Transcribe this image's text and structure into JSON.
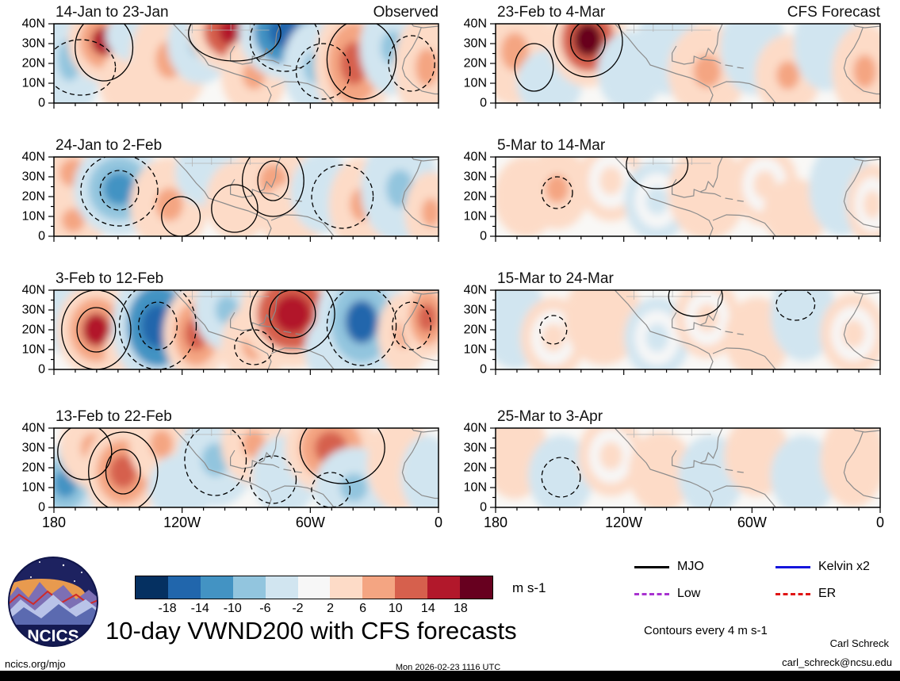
{
  "meta": {
    "site": "ncics.org/mjo",
    "timestamp": "Mon 2026-02-23 1116 UTC",
    "credit_name": "Carl Schreck",
    "credit_email": "carl_schreck@ncsu.edu",
    "contours_note": "Contours every 4 m s-1",
    "logo_text": "NCICS"
  },
  "chart_data": {
    "type": "heatmap",
    "title": "10-day VWND200 with CFS forecasts",
    "variable": "VWND200 anomaly",
    "units": "m s-1",
    "lat_ticks": [
      "40N",
      "30N",
      "20N",
      "10N",
      "0"
    ],
    "lon_ticks": [
      "180",
      "120W",
      "60W",
      "0"
    ],
    "lat_range": [
      0,
      40
    ],
    "lon_range": [
      -180,
      0
    ],
    "colorbar": {
      "levels": [
        -18,
        -14,
        -10,
        -6,
        -2,
        2,
        6,
        10,
        14,
        18
      ],
      "colors": [
        "#053061",
        "#2166ac",
        "#4393c3",
        "#92c5de",
        "#d1e5f0",
        "#f7f7f7",
        "#fddbc7",
        "#f4a582",
        "#d6604d",
        "#b2182b",
        "#67001f"
      ]
    },
    "legend": [
      {
        "label": "MJO",
        "color": "#000000",
        "style": "solid"
      },
      {
        "label": "Kelvin x2",
        "color": "#1414dc",
        "style": "solid"
      },
      {
        "label": "Low",
        "color": "#a832d0",
        "style": "dashed"
      },
      {
        "label": "ER",
        "color": "#e01414",
        "style": "dashed"
      }
    ],
    "panels": [
      {
        "title": "14-Jan to 23-Jan",
        "header": "Observed",
        "anomalies": [
          {
            "x": 0.04,
            "y": 0.45,
            "rx": 0.05,
            "ry": 0.45,
            "v": -7
          },
          {
            "x": 0.13,
            "y": 0.22,
            "rx": 0.055,
            "ry": 0.3,
            "v": 15
          },
          {
            "x": 0.22,
            "y": 0.75,
            "rx": 0.06,
            "ry": 0.3,
            "v": 5
          },
          {
            "x": 0.22,
            "y": 0.15,
            "rx": 0.05,
            "ry": 0.2,
            "v": -5
          },
          {
            "x": 0.3,
            "y": 0.45,
            "rx": 0.06,
            "ry": 0.4,
            "v": 7
          },
          {
            "x": 0.38,
            "y": 0.25,
            "rx": 0.05,
            "ry": 0.3,
            "v": -7
          },
          {
            "x": 0.47,
            "y": 0.1,
            "rx": 0.07,
            "ry": 0.3,
            "v": 17
          },
          {
            "x": 0.52,
            "y": 0.65,
            "rx": 0.05,
            "ry": 0.3,
            "v": 6
          },
          {
            "x": 0.6,
            "y": 0.1,
            "rx": 0.07,
            "ry": 0.35,
            "v": -17
          },
          {
            "x": 0.68,
            "y": 0.55,
            "rx": 0.05,
            "ry": 0.35,
            "v": -8
          },
          {
            "x": 0.78,
            "y": 0.5,
            "rx": 0.06,
            "ry": 0.45,
            "v": 11
          },
          {
            "x": 0.88,
            "y": 0.3,
            "rx": 0.05,
            "ry": 0.35,
            "v": -7
          },
          {
            "x": 0.97,
            "y": 0.55,
            "rx": 0.05,
            "ry": 0.4,
            "v": 9
          }
        ],
        "contours": [
          {
            "x": 0.13,
            "y": 0.3,
            "rx": 0.075,
            "ry": 0.42,
            "d": false
          },
          {
            "x": 0.07,
            "y": 0.55,
            "rx": 0.09,
            "ry": 0.35,
            "d": true
          },
          {
            "x": 0.47,
            "y": 0.12,
            "rx": 0.12,
            "ry": 0.35,
            "d": false
          },
          {
            "x": 0.6,
            "y": 0.2,
            "rx": 0.09,
            "ry": 0.4,
            "d": true
          },
          {
            "x": 0.7,
            "y": 0.6,
            "rx": 0.07,
            "ry": 0.35,
            "d": true
          },
          {
            "x": 0.8,
            "y": 0.45,
            "rx": 0.09,
            "ry": 0.5,
            "d": false
          },
          {
            "x": 0.93,
            "y": 0.5,
            "rx": 0.06,
            "ry": 0.35,
            "d": true
          }
        ]
      },
      {
        "title": "24-Jan to 2-Feb",
        "anomalies": [
          {
            "x": 0.05,
            "y": 0.2,
            "rx": 0.06,
            "ry": 0.3,
            "v": 6
          },
          {
            "x": 0.05,
            "y": 0.8,
            "rx": 0.05,
            "ry": 0.25,
            "v": 7
          },
          {
            "x": 0.17,
            "y": 0.4,
            "rx": 0.07,
            "ry": 0.35,
            "v": -11
          },
          {
            "x": 0.3,
            "y": 0.6,
            "rx": 0.06,
            "ry": 0.35,
            "v": 6
          },
          {
            "x": 0.4,
            "y": 0.2,
            "rx": 0.05,
            "ry": 0.25,
            "v": -4
          },
          {
            "x": 0.48,
            "y": 0.55,
            "rx": 0.05,
            "ry": 0.3,
            "v": 5
          },
          {
            "x": 0.57,
            "y": 0.3,
            "rx": 0.06,
            "ry": 0.35,
            "v": 9
          },
          {
            "x": 0.62,
            "y": 0.75,
            "rx": 0.05,
            "ry": 0.25,
            "v": 5
          },
          {
            "x": 0.7,
            "y": 0.45,
            "rx": 0.05,
            "ry": 0.3,
            "v": -5
          },
          {
            "x": 0.8,
            "y": 0.6,
            "rx": 0.05,
            "ry": 0.35,
            "v": 6
          },
          {
            "x": 0.9,
            "y": 0.4,
            "rx": 0.06,
            "ry": 0.4,
            "v": -9
          },
          {
            "x": 0.98,
            "y": 0.7,
            "rx": 0.04,
            "ry": 0.3,
            "v": 6
          }
        ],
        "contours": [
          {
            "x": 0.17,
            "y": 0.42,
            "rx": 0.1,
            "ry": 0.45,
            "d": true
          },
          {
            "x": 0.17,
            "y": 0.42,
            "rx": 0.05,
            "ry": 0.25,
            "d": true
          },
          {
            "x": 0.57,
            "y": 0.3,
            "rx": 0.08,
            "ry": 0.45,
            "d": false
          },
          {
            "x": 0.57,
            "y": 0.3,
            "rx": 0.04,
            "ry": 0.25,
            "d": false
          },
          {
            "x": 0.47,
            "y": 0.65,
            "rx": 0.06,
            "ry": 0.3,
            "d": false
          },
          {
            "x": 0.75,
            "y": 0.5,
            "rx": 0.08,
            "ry": 0.4,
            "d": true
          },
          {
            "x": 0.33,
            "y": 0.75,
            "rx": 0.05,
            "ry": 0.25,
            "d": false
          }
        ]
      },
      {
        "title": "3-Feb to 12-Feb",
        "anomalies": [
          {
            "x": 0.03,
            "y": 0.3,
            "rx": 0.04,
            "ry": 0.3,
            "v": -5
          },
          {
            "x": 0.11,
            "y": 0.5,
            "rx": 0.06,
            "ry": 0.35,
            "v": 14
          },
          {
            "x": 0.2,
            "y": 0.75,
            "rx": 0.04,
            "ry": 0.2,
            "v": 6
          },
          {
            "x": 0.27,
            "y": 0.45,
            "rx": 0.07,
            "ry": 0.45,
            "v": -17
          },
          {
            "x": 0.37,
            "y": 0.55,
            "rx": 0.05,
            "ry": 0.35,
            "v": 11
          },
          {
            "x": 0.45,
            "y": 0.25,
            "rx": 0.05,
            "ry": 0.3,
            "v": -7
          },
          {
            "x": 0.52,
            "y": 0.7,
            "rx": 0.05,
            "ry": 0.3,
            "v": 6
          },
          {
            "x": 0.62,
            "y": 0.3,
            "rx": 0.08,
            "ry": 0.4,
            "v": 17
          },
          {
            "x": 0.72,
            "y": 0.75,
            "rx": 0.04,
            "ry": 0.25,
            "v": -6
          },
          {
            "x": 0.8,
            "y": 0.4,
            "rx": 0.07,
            "ry": 0.45,
            "v": -15
          },
          {
            "x": 0.91,
            "y": 0.55,
            "rx": 0.04,
            "ry": 0.3,
            "v": 7
          },
          {
            "x": 0.97,
            "y": 0.35,
            "rx": 0.04,
            "ry": 0.3,
            "v": 10
          }
        ],
        "contours": [
          {
            "x": 0.11,
            "y": 0.5,
            "rx": 0.09,
            "ry": 0.5,
            "d": false
          },
          {
            "x": 0.11,
            "y": 0.5,
            "rx": 0.05,
            "ry": 0.28,
            "d": false
          },
          {
            "x": 0.27,
            "y": 0.45,
            "rx": 0.1,
            "ry": 0.55,
            "d": true
          },
          {
            "x": 0.27,
            "y": 0.45,
            "rx": 0.05,
            "ry": 0.3,
            "d": true
          },
          {
            "x": 0.62,
            "y": 0.3,
            "rx": 0.11,
            "ry": 0.5,
            "d": false
          },
          {
            "x": 0.62,
            "y": 0.3,
            "rx": 0.06,
            "ry": 0.3,
            "d": false
          },
          {
            "x": 0.8,
            "y": 0.45,
            "rx": 0.09,
            "ry": 0.5,
            "d": true
          },
          {
            "x": 0.52,
            "y": 0.72,
            "rx": 0.05,
            "ry": 0.22,
            "d": true
          },
          {
            "x": 0.93,
            "y": 0.45,
            "rx": 0.05,
            "ry": 0.3,
            "d": true
          }
        ]
      },
      {
        "title": "13-Feb to 22-Feb",
        "anomalies": [
          {
            "x": 0.03,
            "y": 0.7,
            "rx": 0.05,
            "ry": 0.3,
            "v": -11
          },
          {
            "x": 0.1,
            "y": 0.25,
            "rx": 0.05,
            "ry": 0.3,
            "v": 6
          },
          {
            "x": 0.18,
            "y": 0.55,
            "rx": 0.06,
            "ry": 0.35,
            "v": 13
          },
          {
            "x": 0.28,
            "y": 0.2,
            "rx": 0.05,
            "ry": 0.3,
            "v": 7
          },
          {
            "x": 0.33,
            "y": 0.75,
            "rx": 0.05,
            "ry": 0.25,
            "v": -6
          },
          {
            "x": 0.42,
            "y": 0.4,
            "rx": 0.06,
            "ry": 0.35,
            "v": -8
          },
          {
            "x": 0.52,
            "y": 0.2,
            "rx": 0.05,
            "ry": 0.3,
            "v": 6
          },
          {
            "x": 0.6,
            "y": 0.6,
            "rx": 0.05,
            "ry": 0.3,
            "v": -5
          },
          {
            "x": 0.72,
            "y": 0.25,
            "rx": 0.07,
            "ry": 0.35,
            "v": 10
          },
          {
            "x": 0.78,
            "y": 0.75,
            "rx": 0.06,
            "ry": 0.3,
            "v": -10
          },
          {
            "x": 0.9,
            "y": 0.45,
            "rx": 0.05,
            "ry": 0.35,
            "v": 5
          },
          {
            "x": 0.97,
            "y": 0.6,
            "rx": 0.04,
            "ry": 0.3,
            "v": -5
          }
        ],
        "contours": [
          {
            "x": 0.18,
            "y": 0.55,
            "rx": 0.09,
            "ry": 0.5,
            "d": false
          },
          {
            "x": 0.18,
            "y": 0.55,
            "rx": 0.045,
            "ry": 0.28,
            "d": false
          },
          {
            "x": 0.08,
            "y": 0.3,
            "rx": 0.07,
            "ry": 0.35,
            "d": false
          },
          {
            "x": 0.42,
            "y": 0.4,
            "rx": 0.08,
            "ry": 0.45,
            "d": true
          },
          {
            "x": 0.75,
            "y": 0.25,
            "rx": 0.11,
            "ry": 0.45,
            "d": false
          },
          {
            "x": 0.72,
            "y": 0.78,
            "rx": 0.05,
            "ry": 0.22,
            "d": true
          },
          {
            "x": 0.57,
            "y": 0.65,
            "rx": 0.06,
            "ry": 0.3,
            "d": true
          }
        ]
      },
      {
        "title": "23-Feb to 4-Mar",
        "header": "CFS Forecast",
        "anomalies": [
          {
            "x": 0.05,
            "y": 0.35,
            "rx": 0.06,
            "ry": 0.4,
            "v": 7
          },
          {
            "x": 0.14,
            "y": 0.75,
            "rx": 0.05,
            "ry": 0.25,
            "v": -5
          },
          {
            "x": 0.24,
            "y": 0.2,
            "rx": 0.06,
            "ry": 0.35,
            "v": 18
          },
          {
            "x": 0.35,
            "y": 0.6,
            "rx": 0.05,
            "ry": 0.3,
            "v": -4
          },
          {
            "x": 0.45,
            "y": 0.3,
            "rx": 0.05,
            "ry": 0.35,
            "v": -4
          },
          {
            "x": 0.55,
            "y": 0.6,
            "rx": 0.06,
            "ry": 0.35,
            "v": 6
          },
          {
            "x": 0.67,
            "y": 0.3,
            "rx": 0.05,
            "ry": 0.35,
            "v": -5
          },
          {
            "x": 0.76,
            "y": 0.65,
            "rx": 0.05,
            "ry": 0.3,
            "v": 6
          },
          {
            "x": 0.86,
            "y": 0.25,
            "rx": 0.05,
            "ry": 0.35,
            "v": -5
          },
          {
            "x": 0.96,
            "y": 0.6,
            "rx": 0.05,
            "ry": 0.35,
            "v": 6
          }
        ],
        "contours": [
          {
            "x": 0.24,
            "y": 0.22,
            "rx": 0.09,
            "ry": 0.45,
            "d": false
          },
          {
            "x": 0.24,
            "y": 0.22,
            "rx": 0.045,
            "ry": 0.25,
            "d": false
          },
          {
            "x": 0.1,
            "y": 0.55,
            "rx": 0.05,
            "ry": 0.3,
            "d": false
          }
        ]
      },
      {
        "title": "5-Mar to 14-Mar",
        "anomalies": [
          {
            "x": 0.08,
            "y": 0.5,
            "rx": 0.05,
            "ry": 0.3,
            "v": 4
          },
          {
            "x": 0.16,
            "y": 0.4,
            "rx": 0.05,
            "ry": 0.3,
            "v": 6
          },
          {
            "x": 0.3,
            "y": 0.3,
            "rx": 0.05,
            "ry": 0.3,
            "v": 3
          },
          {
            "x": 0.42,
            "y": 0.55,
            "rx": 0.05,
            "ry": 0.3,
            "v": -3
          },
          {
            "x": 0.55,
            "y": 0.45,
            "rx": 0.06,
            "ry": 0.35,
            "v": 4
          },
          {
            "x": 0.7,
            "y": 0.35,
            "rx": 0.05,
            "ry": 0.3,
            "v": 3
          },
          {
            "x": 0.78,
            "y": 0.7,
            "rx": 0.05,
            "ry": 0.25,
            "v": 4
          },
          {
            "x": 0.9,
            "y": 0.4,
            "rx": 0.05,
            "ry": 0.35,
            "v": -4
          },
          {
            "x": 0.98,
            "y": 0.6,
            "rx": 0.04,
            "ry": 0.3,
            "v": 3
          }
        ],
        "contours": [
          {
            "x": 0.42,
            "y": 0.1,
            "rx": 0.08,
            "ry": 0.3,
            "d": false
          },
          {
            "x": 0.16,
            "y": 0.45,
            "rx": 0.04,
            "ry": 0.2,
            "d": true
          }
        ]
      },
      {
        "title": "15-Mar to 24-Mar",
        "anomalies": [
          {
            "x": 0.05,
            "y": 0.4,
            "rx": 0.05,
            "ry": 0.35,
            "v": -4
          },
          {
            "x": 0.15,
            "y": 0.6,
            "rx": 0.05,
            "ry": 0.3,
            "v": 3
          },
          {
            "x": 0.28,
            "y": 0.35,
            "rx": 0.06,
            "ry": 0.35,
            "v": 4
          },
          {
            "x": 0.42,
            "y": 0.6,
            "rx": 0.05,
            "ry": 0.3,
            "v": -3
          },
          {
            "x": 0.55,
            "y": 0.35,
            "rx": 0.05,
            "ry": 0.3,
            "v": 3
          },
          {
            "x": 0.68,
            "y": 0.6,
            "rx": 0.05,
            "ry": 0.3,
            "v": 4
          },
          {
            "x": 0.8,
            "y": 0.3,
            "rx": 0.05,
            "ry": 0.35,
            "v": -4
          },
          {
            "x": 0.93,
            "y": 0.55,
            "rx": 0.05,
            "ry": 0.3,
            "v": 3
          }
        ],
        "contours": [
          {
            "x": 0.52,
            "y": 0.08,
            "rx": 0.07,
            "ry": 0.25,
            "d": false
          },
          {
            "x": 0.15,
            "y": 0.5,
            "rx": 0.035,
            "ry": 0.18,
            "d": true
          },
          {
            "x": 0.78,
            "y": 0.18,
            "rx": 0.05,
            "ry": 0.2,
            "d": true
          }
        ]
      },
      {
        "title": "25-Mar to 3-Apr",
        "anomalies": [
          {
            "x": 0.05,
            "y": 0.3,
            "rx": 0.05,
            "ry": 0.35,
            "v": 4
          },
          {
            "x": 0.17,
            "y": 0.6,
            "rx": 0.05,
            "ry": 0.3,
            "v": -4
          },
          {
            "x": 0.3,
            "y": 0.35,
            "rx": 0.05,
            "ry": 0.3,
            "v": 3
          },
          {
            "x": 0.43,
            "y": 0.55,
            "rx": 0.05,
            "ry": 0.3,
            "v": 4
          },
          {
            "x": 0.56,
            "y": 0.6,
            "rx": 0.05,
            "ry": 0.3,
            "v": -5
          },
          {
            "x": 0.68,
            "y": 0.35,
            "rx": 0.05,
            "ry": 0.3,
            "v": 4
          },
          {
            "x": 0.8,
            "y": 0.6,
            "rx": 0.05,
            "ry": 0.3,
            "v": -4
          },
          {
            "x": 0.93,
            "y": 0.4,
            "rx": 0.05,
            "ry": 0.35,
            "v": 4
          }
        ],
        "contours": [
          {
            "x": 0.17,
            "y": 0.62,
            "rx": 0.05,
            "ry": 0.25,
            "d": true
          }
        ]
      }
    ]
  }
}
